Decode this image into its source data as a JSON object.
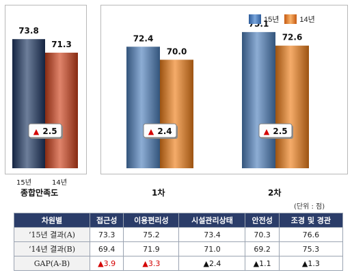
{
  "legend": [
    {
      "name": "15년",
      "color": "#4f81bd"
    },
    {
      "name": "14년",
      "color": "#f07f1a"
    }
  ],
  "chart_data": [
    {
      "type": "bar",
      "categories": [
        "종합만족도"
      ],
      "bar_labels": [
        "15년",
        "14년"
      ],
      "series": [
        {
          "name": "15년",
          "values": [
            73.8
          ]
        },
        {
          "name": "14년",
          "values": [
            71.3
          ]
        }
      ],
      "gaps": [
        "2.5"
      ],
      "colors": [
        "#1f3864",
        "#d0421b"
      ]
    },
    {
      "type": "bar",
      "categories": [
        "1차",
        "2차"
      ],
      "series": [
        {
          "name": "15년",
          "values": [
            72.4,
            75.1
          ]
        },
        {
          "name": "14년",
          "values": [
            70.0,
            72.6
          ]
        }
      ],
      "gaps": [
        "2.4",
        "2.5"
      ],
      "colors": [
        "#4f81bd",
        "#f07f1a"
      ]
    }
  ],
  "unit_note": "(단위 : 점)",
  "table": {
    "header": [
      "차원별",
      "접근성",
      "이용편리성",
      "시설관리상태",
      "안전성",
      "조경 및 경관"
    ],
    "rows": [
      {
        "label": "‘15년 결과(A)",
        "cells": [
          "73.3",
          "75.2",
          "73.4",
          "70.3",
          "76.6"
        ]
      },
      {
        "label": "‘14년 결과(B)",
        "cells": [
          "69.4",
          "71.9",
          "71.0",
          "69.2",
          "75.3"
        ]
      },
      {
        "label": "GAP(A-B)",
        "cells": [
          "3.9",
          "3.3",
          "2.4",
          "1.1",
          "1.3"
        ],
        "tri_colors": [
          "red",
          "red",
          "black",
          "black",
          "black"
        ]
      }
    ]
  }
}
